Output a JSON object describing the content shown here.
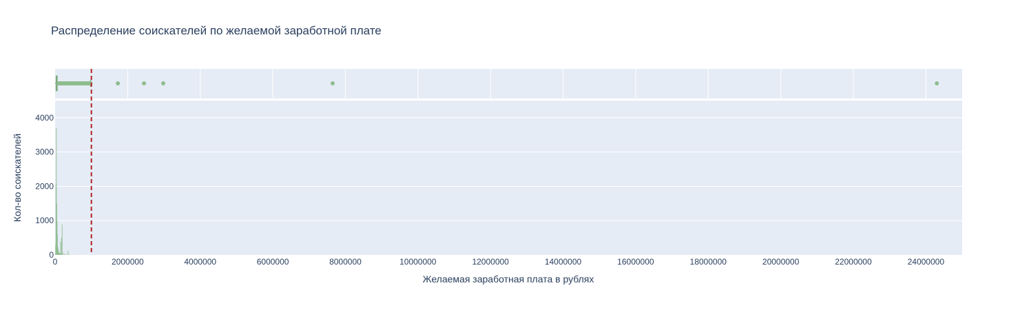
{
  "chart_data": {
    "type": "histogram",
    "title": "Распределение соискателей по желаемой заработной плате",
    "xlabel": "Желаемая заработная плата в рублях",
    "ylabel": "Кол-во соискателей",
    "xlim": [
      0,
      25000000
    ],
    "ylim": [
      0,
      4500
    ],
    "x_tick_labels": [
      "0",
      "2000000",
      "4000000",
      "6000000",
      "8000000",
      "10000000",
      "12000000",
      "14000000",
      "16000000",
      "18000000",
      "20000000",
      "22000000",
      "24000000"
    ],
    "y_tick_labels": [
      "0",
      "1000",
      "2000",
      "3000",
      "4000"
    ],
    "histogram": {
      "bins": [
        {
          "x": 10000,
          "y": 300
        },
        {
          "x": 20000,
          "y": 2050
        },
        {
          "x": 30000,
          "y": 3700
        },
        {
          "x": 40000,
          "y": 1500
        },
        {
          "x": 50000,
          "y": 1000
        },
        {
          "x": 60000,
          "y": 600
        },
        {
          "x": 70000,
          "y": 250
        },
        {
          "x": 80000,
          "y": 180
        },
        {
          "x": 90000,
          "y": 120
        },
        {
          "x": 100000,
          "y": 80
        },
        {
          "x": 110000,
          "y": 60
        },
        {
          "x": 120000,
          "y": 50
        },
        {
          "x": 130000,
          "y": 40
        },
        {
          "x": 140000,
          "y": 35
        },
        {
          "x": 150000,
          "y": 380
        },
        {
          "x": 170000,
          "y": 500
        },
        {
          "x": 190000,
          "y": 890
        },
        {
          "x": 210000,
          "y": 60
        },
        {
          "x": 250000,
          "y": 40
        },
        {
          "x": 300000,
          "y": 30
        },
        {
          "x": 350000,
          "y": 120
        },
        {
          "x": 400000,
          "y": 20
        },
        {
          "x": 500000,
          "y": 10
        }
      ]
    },
    "box": {
      "q1": 25000,
      "median": 40000,
      "q3": 60000,
      "whisker_low": 0,
      "whisker_high": 980000,
      "outliers": [
        1730000,
        2450000,
        2980000,
        7650000,
        24300000
      ]
    },
    "reference_line": {
      "x": 1000000,
      "style": "dashed"
    },
    "colors": {
      "bar": "#8fbc8f",
      "reference_line": "#b22222",
      "plot_bg": "#e5ecf6",
      "grid": "#ffffff",
      "text": "#2a3f5f"
    }
  }
}
